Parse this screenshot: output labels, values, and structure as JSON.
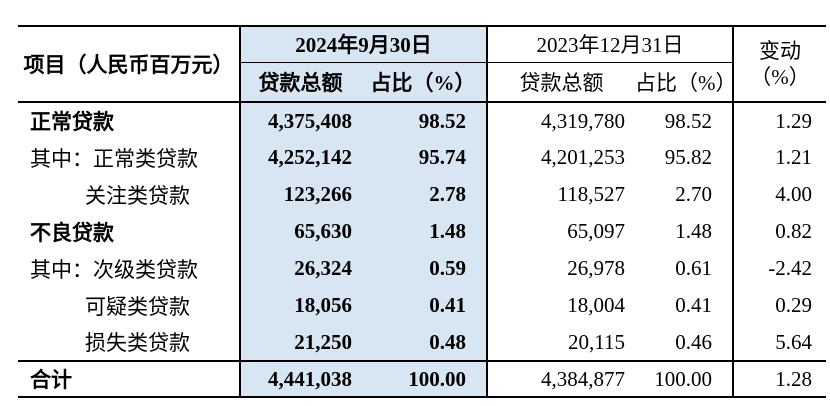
{
  "header": {
    "project_col": "项目（人民币百万元）",
    "group_2024": "2024年9月30日",
    "group_2023": "2023年12月31日",
    "change_line1": "变动",
    "change_line2": "（%）",
    "sub_loan_2024": "贷款总额",
    "sub_ratio_2024": "占比（%）",
    "sub_loan_2023": "贷款总额",
    "sub_ratio_2023": "占比（%）"
  },
  "rows": [
    {
      "label": "正常贷款",
      "loan_2024": "4,375,408",
      "ratio_2024": "98.52",
      "loan_2023": "4,319,780",
      "ratio_2023": "98.52",
      "change": "1.29"
    },
    {
      "label": "其中：正常类贷款",
      "loan_2024": "4,252,142",
      "ratio_2024": "95.74",
      "loan_2023": "4,201,253",
      "ratio_2023": "95.82",
      "change": "1.21"
    },
    {
      "label": "关注类贷款",
      "loan_2024": "123,266",
      "ratio_2024": "2.78",
      "loan_2023": "118,527",
      "ratio_2023": "2.70",
      "change": "4.00"
    },
    {
      "label": "不良贷款",
      "loan_2024": "65,630",
      "ratio_2024": "1.48",
      "loan_2023": "65,097",
      "ratio_2023": "1.48",
      "change": "0.82"
    },
    {
      "label": "其中：次级类贷款",
      "loan_2024": "26,324",
      "ratio_2024": "0.59",
      "loan_2023": "26,978",
      "ratio_2023": "0.61",
      "change": "-2.42"
    },
    {
      "label": "可疑类贷款",
      "loan_2024": "18,056",
      "ratio_2024": "0.41",
      "loan_2023": "18,004",
      "ratio_2023": "0.41",
      "change": "0.29"
    },
    {
      "label": "损失类贷款",
      "loan_2024": "21,250",
      "ratio_2024": "0.48",
      "loan_2023": "20,115",
      "ratio_2023": "0.46",
      "change": "5.64"
    },
    {
      "label": "合计",
      "loan_2024": "4,441,038",
      "ratio_2024": "100.00",
      "loan_2023": "4,384,877",
      "ratio_2023": "100.00",
      "change": "1.28"
    }
  ],
  "colors": {
    "highlight_bg": "#D8E5F2",
    "border": "#000000",
    "text": "#000000"
  }
}
